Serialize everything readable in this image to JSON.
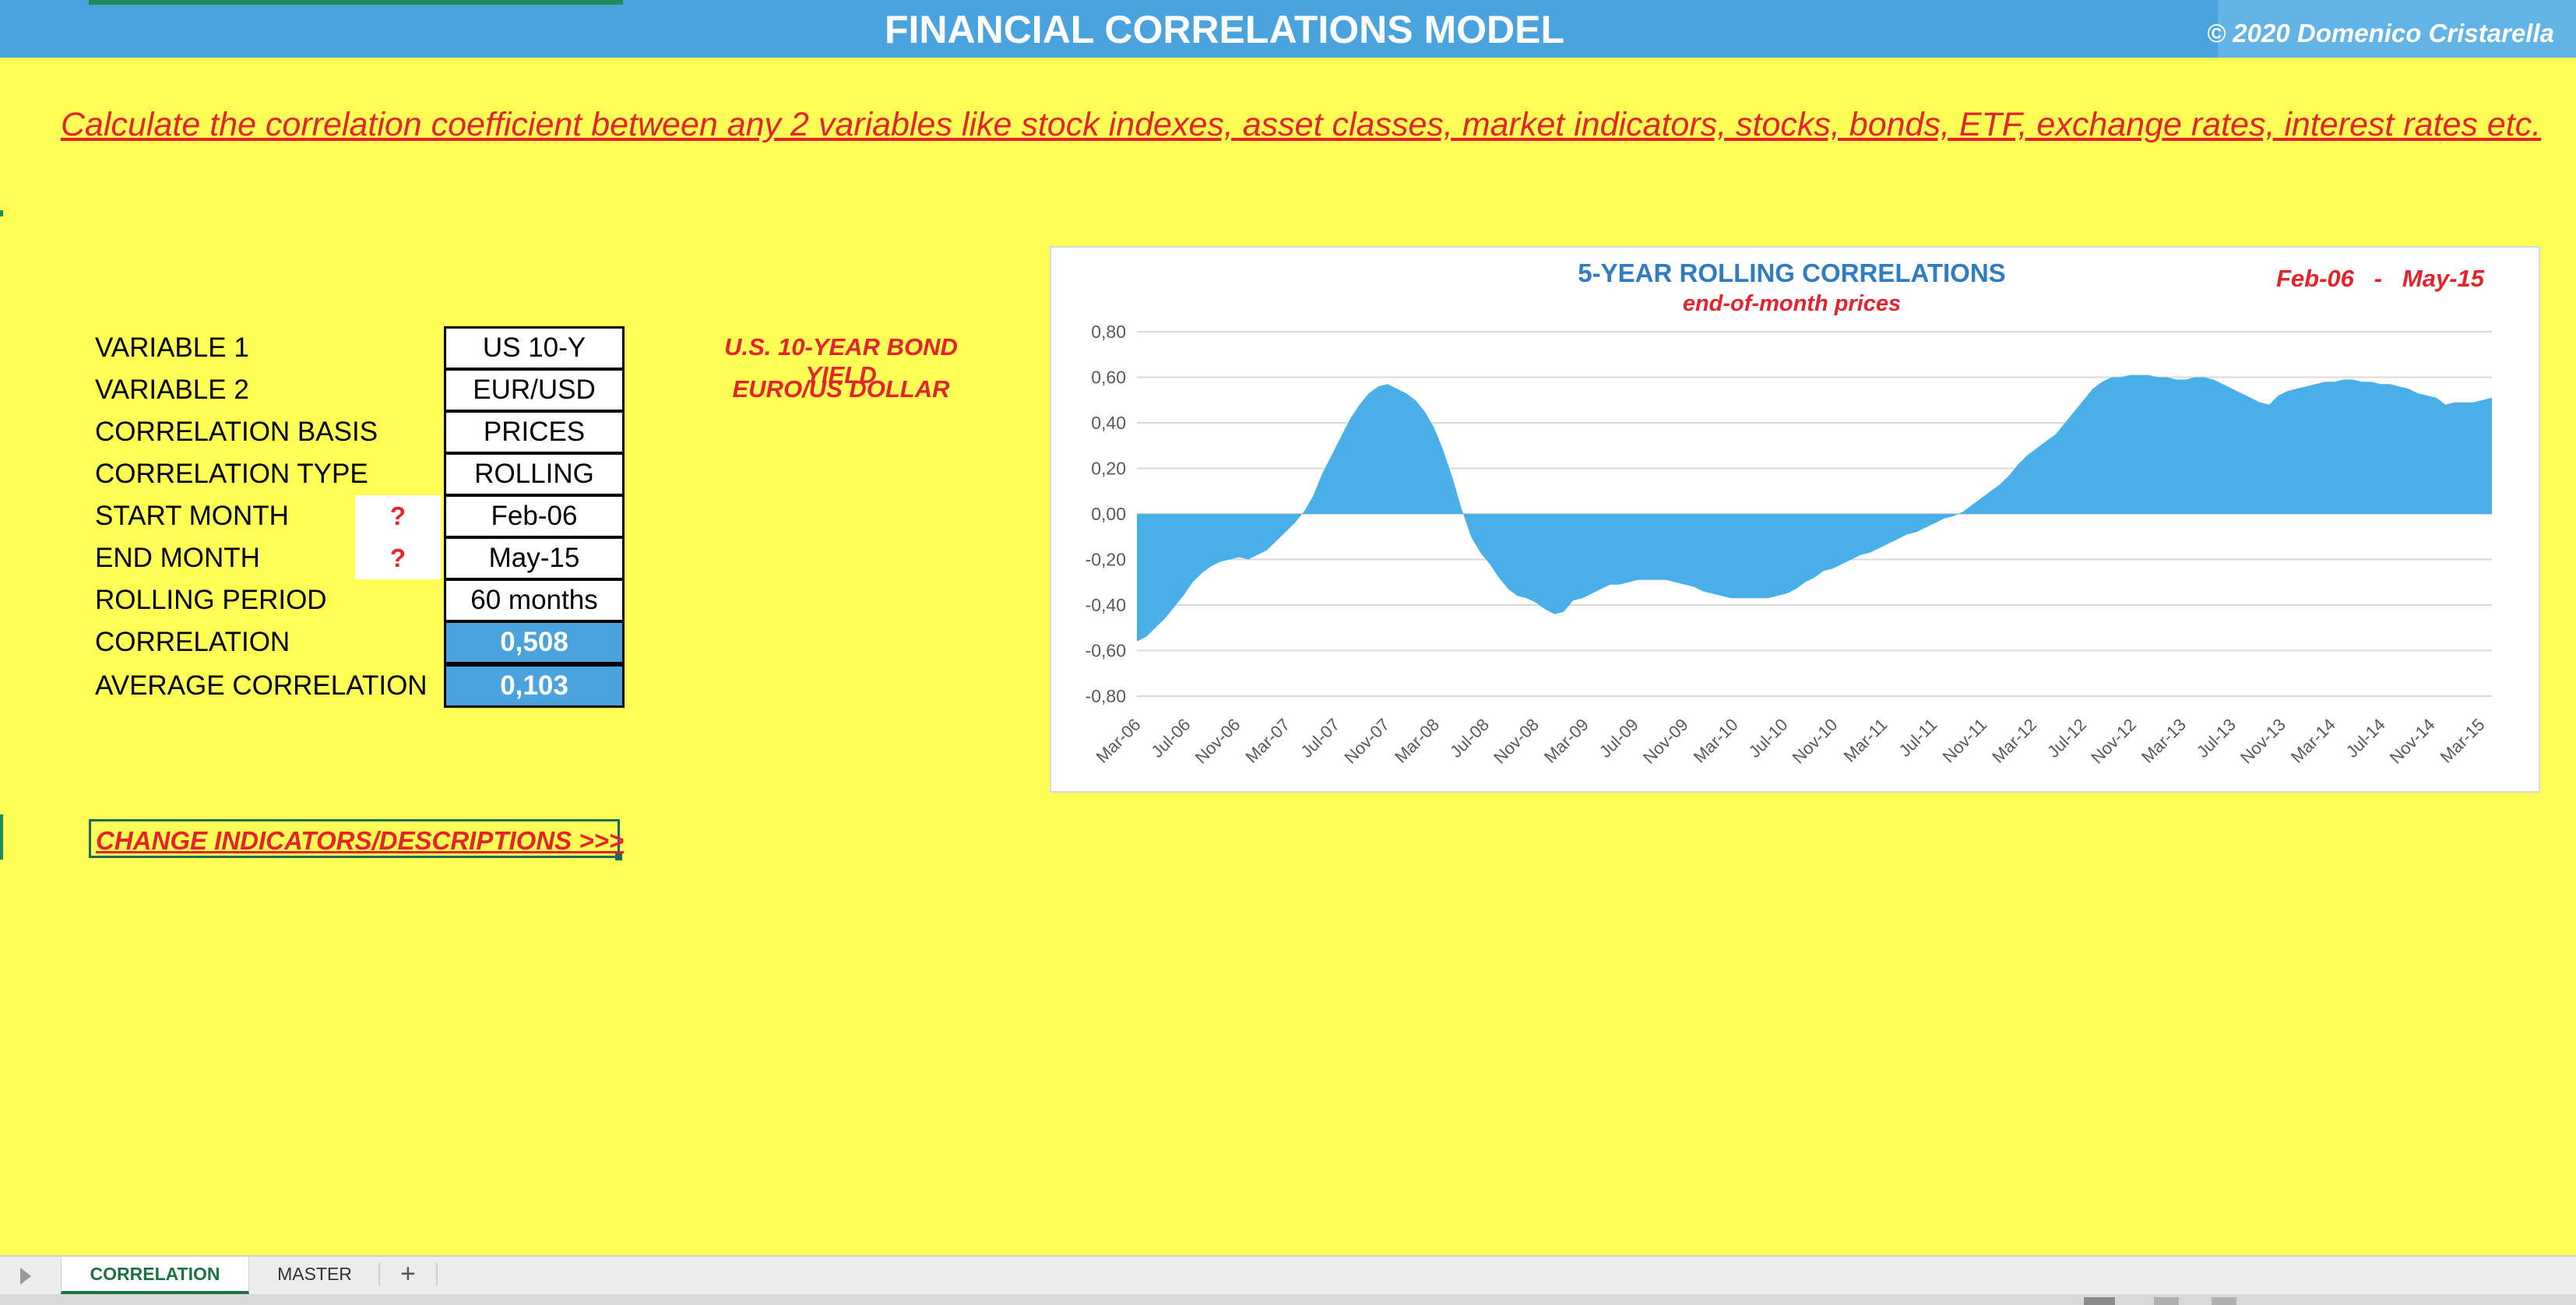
{
  "header": {
    "title": "FINANCIAL CORRELATIONS MODEL",
    "copyright": "© 2020 Domenico Cristarella"
  },
  "subtitle": "Calculate the correlation coefficient between any 2 variables like stock indexes, asset classes, market indicators, stocks, bonds, ETF, exchange rates, interest rates etc.",
  "params": [
    {
      "label": "VARIABLE 1",
      "value": "US 10-Y"
    },
    {
      "label": "VARIABLE 2",
      "value": "EUR/USD"
    },
    {
      "label": "CORRELATION BASIS",
      "value": "PRICES"
    },
    {
      "label": "CORRELATION TYPE",
      "value": "ROLLING"
    },
    {
      "label": "START MONTH",
      "value": "Feb-06",
      "help": "?"
    },
    {
      "label": "END MONTH",
      "value": "May-15",
      "help": "?"
    },
    {
      "label": "ROLLING PERIOD",
      "value": "60 months"
    },
    {
      "label": "CORRELATION",
      "value": "0,508"
    },
    {
      "label": "AVERAGE CORRELATION",
      "value": "0,103"
    }
  ],
  "descriptions": {
    "var1": "U.S. 10-YEAR BOND YIELD",
    "var2": "EURO/US DOLLAR"
  },
  "change_link": "CHANGE INDICATORS/DESCRIPTIONS >>>",
  "chart_range": {
    "start": "Feb-06",
    "sep": "-",
    "end": "May-15"
  },
  "chart_data": {
    "type": "area",
    "title": "5-YEAR ROLLING CORRELATIONS",
    "subtitle": "end-of-month prices",
    "fill_color": "#4aaee8",
    "grid": true,
    "ylim": [
      -0.8,
      0.8
    ],
    "yticks": [
      "0,80",
      "0,60",
      "0,40",
      "0,20",
      "0,00",
      "-0,20",
      "-0,40",
      "-0,60",
      "-0,80"
    ],
    "xticks": [
      "Mar-06",
      "Jul-06",
      "Nov-06",
      "Mar-07",
      "Jul-07",
      "Nov-07",
      "Mar-08",
      "Jul-08",
      "Nov-08",
      "Mar-09",
      "Jul-09",
      "Nov-09",
      "Mar-10",
      "Jul-10",
      "Nov-10",
      "Mar-11",
      "Jul-11",
      "Nov-11",
      "Mar-12",
      "Jul-12",
      "Nov-12",
      "Mar-13",
      "Jul-13",
      "Nov-13",
      "Mar-14",
      "Jul-14",
      "Nov-14",
      "Mar-15"
    ],
    "values": [
      -0.56,
      -0.54,
      -0.5,
      -0.46,
      -0.41,
      -0.36,
      -0.3,
      -0.26,
      -0.23,
      -0.21,
      -0.2,
      -0.19,
      -0.2,
      -0.18,
      -0.16,
      -0.12,
      -0.08,
      -0.04,
      0.01,
      0.08,
      0.18,
      0.26,
      0.34,
      0.42,
      0.48,
      0.53,
      0.56,
      0.57,
      0.55,
      0.53,
      0.5,
      0.45,
      0.38,
      0.28,
      0.16,
      0.02,
      -0.1,
      -0.17,
      -0.22,
      -0.28,
      -0.33,
      -0.36,
      -0.37,
      -0.39,
      -0.42,
      -0.44,
      -0.43,
      -0.38,
      -0.37,
      -0.35,
      -0.33,
      -0.31,
      -0.31,
      -0.3,
      -0.29,
      -0.29,
      -0.29,
      -0.29,
      -0.3,
      -0.31,
      -0.32,
      -0.34,
      -0.35,
      -0.36,
      -0.37,
      -0.37,
      -0.37,
      -0.37,
      -0.37,
      -0.36,
      -0.35,
      -0.33,
      -0.3,
      -0.28,
      -0.25,
      -0.24,
      -0.22,
      -0.2,
      -0.18,
      -0.17,
      -0.15,
      -0.13,
      -0.11,
      -0.09,
      -0.08,
      -0.06,
      -0.04,
      -0.02,
      -0.01,
      0.01,
      0.04,
      0.07,
      0.1,
      0.13,
      0.17,
      0.22,
      0.26,
      0.29,
      0.32,
      0.35,
      0.4,
      0.45,
      0.5,
      0.55,
      0.58,
      0.6,
      0.6,
      0.61,
      0.61,
      0.61,
      0.6,
      0.6,
      0.59,
      0.59,
      0.6,
      0.6,
      0.59,
      0.57,
      0.55,
      0.53,
      0.51,
      0.49,
      0.48,
      0.52,
      0.54,
      0.55,
      0.56,
      0.57,
      0.58,
      0.58,
      0.59,
      0.59,
      0.58,
      0.58,
      0.57,
      0.57,
      0.56,
      0.55,
      0.53,
      0.52,
      0.51,
      0.48,
      0.49,
      0.49,
      0.49,
      0.5,
      0.51
    ]
  },
  "tabs": {
    "sheets": [
      "CORRELATION",
      "MASTER"
    ],
    "add": "+"
  }
}
